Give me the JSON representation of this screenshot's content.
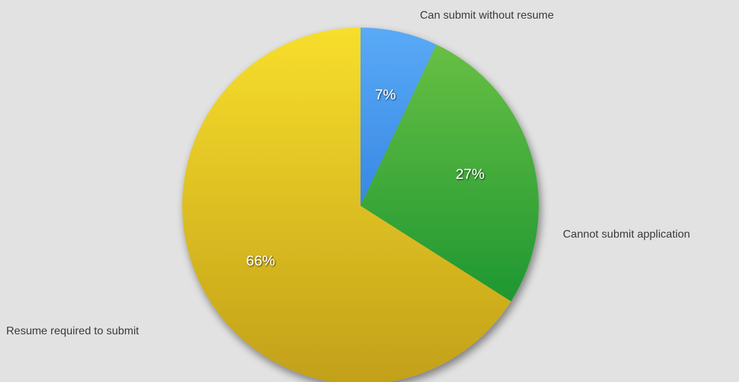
{
  "chart_data": {
    "type": "pie",
    "slices": [
      {
        "label": "Can submit without resume",
        "value": 7,
        "display": "7%",
        "color_top": "#5aaaf7",
        "color_bottom": "#1565cf"
      },
      {
        "label": "Cannot submit application",
        "value": 27,
        "display": "27%",
        "color_top": "#6cc245",
        "color_bottom": "#078a2c"
      },
      {
        "label": "Resume required to submit",
        "value": 66,
        "display": "66%",
        "color_top": "#f8de2c",
        "color_bottom": "#c2a019"
      }
    ],
    "start_angle": "12 o'clock",
    "direction": "clockwise"
  }
}
